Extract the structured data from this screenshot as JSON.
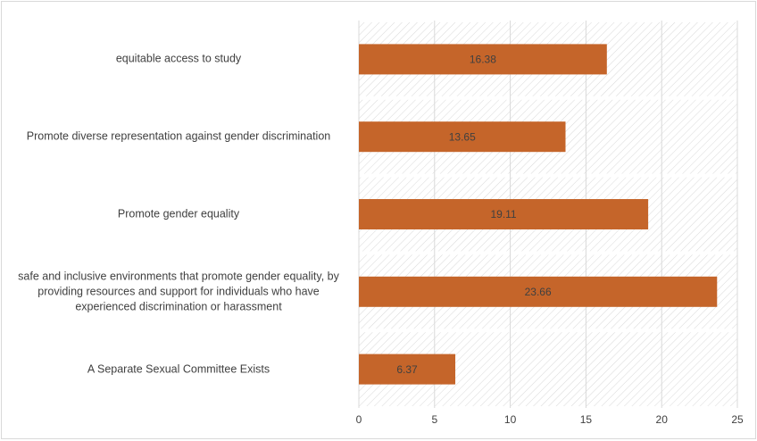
{
  "chart_data": {
    "type": "hbar",
    "categories": [
      "equitable access to study",
      "Promote diverse representation against gender discrimination",
      "Promote gender equality",
      "safe and inclusive environments that promote gender equality, by providing resources and support for individuals who have experienced discrimination or harassment",
      "A Separate Sexual Committee Exists"
    ],
    "values": [
      16.38,
      13.65,
      19.11,
      23.66,
      6.37
    ],
    "color": "#c5652a",
    "xlim": [
      0,
      25
    ],
    "xticks": [
      0,
      5,
      10,
      15,
      20,
      25
    ],
    "grid": true
  }
}
